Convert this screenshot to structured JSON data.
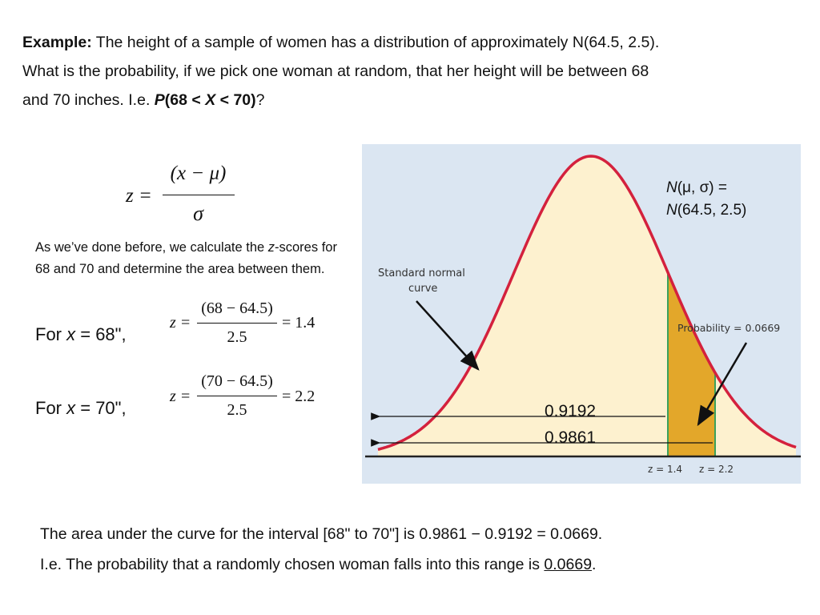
{
  "intro": {
    "label": "Example:",
    "line1": "The height of a sample of women has a distribution of approximately N(64.5, 2.5).",
    "line2": "What is the probability, if we pick one woman at random, that her height will be between 68",
    "line3a": "and 70 inches.  I.e.  ",
    "p": "P",
    "paren_open": "(68 < ",
    "x": "X",
    "paren_close": " < 70)",
    "qmark": "?"
  },
  "formula": {
    "lhs": "z =",
    "numerator": "(x − μ)",
    "denominator": "σ"
  },
  "explanation": {
    "text_a": "As we’ve done before, we calculate the ",
    "z": "z",
    "text_b": "-scores for 68 and 70 and determine the area between them."
  },
  "calc68": {
    "label_a": "For ",
    "label_x": "x",
    "label_b": " = 68\",",
    "lhs": "z =",
    "numerator": "(68 − 64.5)",
    "denominator": "2.5",
    "result": "= 1.4"
  },
  "calc70": {
    "label_a": "For ",
    "label_x": "x",
    "label_b": " = 70\",",
    "lhs": "z =",
    "numerator": "(70 − 64.5)",
    "denominator": "2.5",
    "result": "= 2.2"
  },
  "figure": {
    "background": "#dbe6f2",
    "curve_color": "#d4213d",
    "fill_color": "#fdf1cf",
    "shade_color": "#e3a72a",
    "marker_color": "#3aa15c",
    "dist_n1": "N",
    "dist_params1": "(μ, σ) =",
    "dist_n2": "N",
    "dist_params2": "(64.5, 2.5)",
    "std_label_1": "Standard normal",
    "std_label_2": "curve",
    "prob_label": "Probability = 0.0669",
    "val_low": "0.9192",
    "val_high": "0.9861",
    "z_low_label": "z = 1.4",
    "z_high_label": "z = 2.2"
  },
  "conclusion": {
    "line1": "The area under the curve for the interval [68\" to 70\"] is 0.9861 − 0.9192 = 0.0669.",
    "line2a": "I.e. The probability that a randomly chosen woman falls into this range is ",
    "line2_value": "0.0669",
    "line2b": "."
  }
}
